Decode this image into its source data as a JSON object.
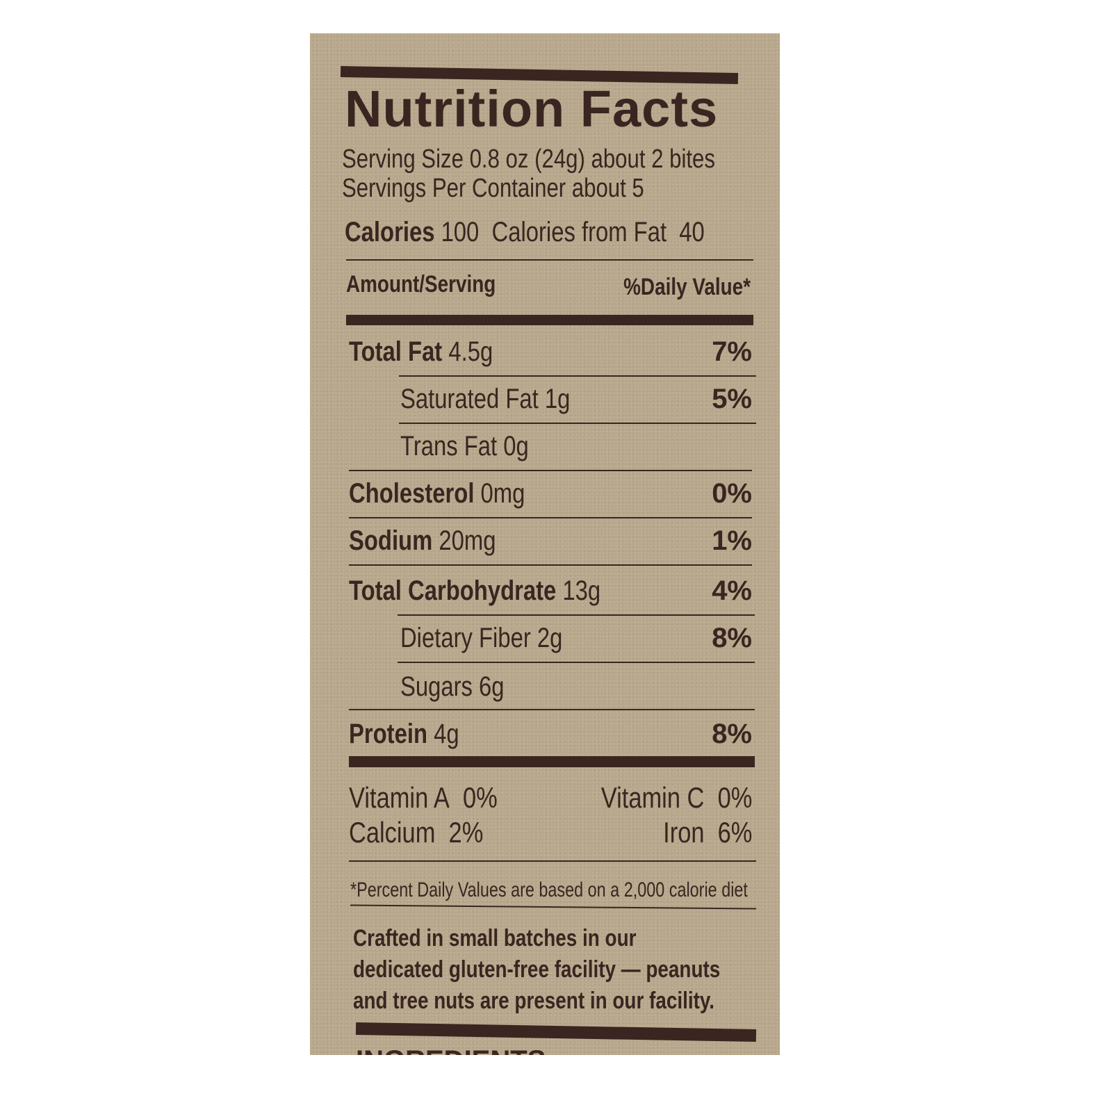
{
  "title": "Nutrition Facts",
  "serving_size": "Serving Size 0.8 oz (24g) about 2 bites",
  "servings_per_container": "Servings Per Container about 5",
  "calories": {
    "label": "Calories",
    "value": "100",
    "from_fat_label": "Calories from Fat",
    "from_fat_value": "40"
  },
  "header": {
    "amount": "Amount/Serving",
    "dv": "%Daily Value*"
  },
  "nutrients": [
    {
      "label": "Total Fat",
      "amount": "4.5g",
      "dv": "7%"
    },
    {
      "label": "Saturated Fat",
      "amount": "1g",
      "dv": "5%"
    },
    {
      "label": "Trans Fat",
      "amount": "0g",
      "dv": ""
    },
    {
      "label": "Cholesterol",
      "amount": "0mg",
      "dv": "0%"
    },
    {
      "label": "Sodium",
      "amount": "20mg",
      "dv": "1%"
    },
    {
      "label": "Total Carbohydrate",
      "amount": "13g",
      "dv": "4%"
    },
    {
      "label": "Dietary Fiber",
      "amount": "2g",
      "dv": "8%"
    },
    {
      "label": "Sugars",
      "amount": "6g",
      "dv": ""
    },
    {
      "label": "Protein",
      "amount": "4g",
      "dv": "8%"
    }
  ],
  "vitamins": [
    {
      "label": "Vitamin A",
      "dv": "0%"
    },
    {
      "label": "Vitamin C",
      "dv": "0%"
    },
    {
      "label": "Calcium",
      "dv": "2%"
    },
    {
      "label": "Iron",
      "dv": "6%"
    }
  ],
  "footnote": "*Percent Daily Values are based on a 2,000 calorie diet",
  "facility_note": [
    "Crafted in small batches in our",
    "dedicated gluten-free facility — peanuts",
    "and tree nuts are present in our facility."
  ],
  "ingredients_label": "INGREDIENTS:",
  "colors": {
    "ink": "#3a2520",
    "paper": "#b7a78c"
  }
}
